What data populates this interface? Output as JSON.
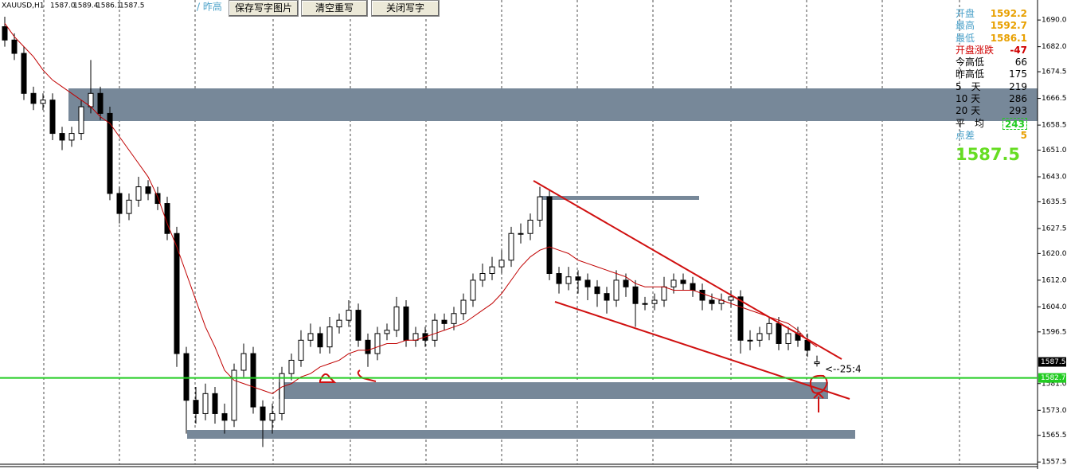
{
  "toolbar": {
    "prev_label": "/ 昨高",
    "buttons": [
      "保存写字图片",
      "清空重写",
      "关闭写字"
    ]
  },
  "chart_data": {
    "type": "candlestick",
    "symbol": "XAUUSD,H1",
    "header_ohlc": [
      "1587.0",
      "1589.4",
      "1586.1",
      "1587.5"
    ],
    "open": [
      1688,
      1684,
      1680,
      1668,
      1665,
      1666,
      1656,
      1654,
      1656,
      1664,
      1668,
      1662,
      1638,
      1632,
      1636,
      1640,
      1638,
      1635,
      1626,
      1590,
      1576,
      1572,
      1578,
      1572,
      1570,
      1585,
      1590,
      1574,
      1570,
      1572,
      1584,
      1588,
      1594,
      1596,
      1592,
      1598,
      1600,
      1603,
      1594,
      1590,
      1596,
      1597,
      1604,
      1594,
      1596,
      1594,
      1600,
      1599,
      1602,
      1606,
      1612,
      1614,
      1616,
      1618,
      1626,
      1626,
      1630,
      1637,
      1614,
      1611,
      1613,
      1612,
      1610,
      1608,
      1606,
      1612,
      1610,
      1605,
      1605,
      1606,
      1610,
      1612,
      1611,
      1609,
      1606,
      1605,
      1606,
      1607,
      1594,
      1594,
      1596,
      1599,
      1593,
      1596,
      1594,
      1587.0
    ],
    "high": [
      1691,
      1686,
      1682,
      1670,
      1668,
      1668,
      1658,
      1658,
      1666,
      1678,
      1670,
      1664,
      1640,
      1638,
      1643,
      1642,
      1640,
      1637,
      1628,
      1592,
      1580,
      1581,
      1580,
      1575,
      1587,
      1593,
      1592,
      1576,
      1575,
      1586,
      1590,
      1597,
      1599,
      1598,
      1601,
      1602,
      1606,
      1605,
      1596,
      1598,
      1599,
      1607,
      1606,
      1598,
      1598,
      1602,
      1602,
      1604,
      1608,
      1614,
      1617,
      1619,
      1621,
      1628,
      1629,
      1632,
      1640,
      1639,
      1616,
      1616,
      1615,
      1614,
      1612,
      1610,
      1615,
      1614,
      1612,
      1607,
      1608,
      1613,
      1614,
      1614,
      1613,
      1611,
      1608,
      1608,
      1609,
      1609,
      1597,
      1598,
      1601,
      1601,
      1598,
      1598,
      1596,
      1589.4
    ],
    "low": [
      1682,
      1678,
      1666,
      1663,
      1663,
      1654,
      1651,
      1652,
      1654,
      1662,
      1660,
      1636,
      1629,
      1630,
      1634,
      1636,
      1633,
      1624,
      1586,
      1566,
      1569,
      1570,
      1569,
      1566,
      1568,
      1583,
      1572,
      1562,
      1566,
      1570,
      1582,
      1586,
      1592,
      1590,
      1590,
      1596,
      1598,
      1592,
      1586,
      1588,
      1594,
      1595,
      1592,
      1592,
      1592,
      1592,
      1597,
      1597,
      1600,
      1604,
      1610,
      1612,
      1614,
      1616,
      1623,
      1624,
      1628,
      1612,
      1608,
      1609,
      1608,
      1606,
      1604,
      1602,
      1604,
      1607,
      1598,
      1603,
      1603,
      1604,
      1608,
      1609,
      1607,
      1603,
      1603,
      1603,
      1604,
      1590,
      1591,
      1592,
      1594,
      1591,
      1591,
      1592,
      1589,
      1586.1
    ],
    "close": [
      1684,
      1680,
      1668,
      1665,
      1666,
      1656,
      1654,
      1656,
      1664,
      1668,
      1662,
      1638,
      1632,
      1636,
      1640,
      1638,
      1635,
      1626,
      1590,
      1576,
      1572,
      1578,
      1572,
      1570,
      1585,
      1590,
      1574,
      1570,
      1572,
      1584,
      1588,
      1594,
      1596,
      1592,
      1598,
      1600,
      1603,
      1594,
      1590,
      1596,
      1597,
      1604,
      1594,
      1596,
      1594,
      1600,
      1599,
      1602,
      1606,
      1612,
      1614,
      1616,
      1618,
      1626,
      1626,
      1630,
      1637,
      1614,
      1611,
      1613,
      1612,
      1610,
      1608,
      1606,
      1612,
      1610,
      1605,
      1605,
      1606,
      1610,
      1612,
      1611,
      1609,
      1606,
      1605,
      1606,
      1607,
      1594,
      1594,
      1596,
      1599,
      1593,
      1596,
      1594,
      1591,
      1587.5
    ],
    "ma": {
      "color": "#c00000",
      "values": [
        1689,
        1685,
        1682,
        1679,
        1675,
        1672,
        1670,
        1668,
        1666,
        1664,
        1661,
        1659,
        1655,
        1651,
        1647,
        1643,
        1637,
        1629,
        1622,
        1614,
        1606,
        1598,
        1592,
        1585,
        1582,
        1581,
        1580,
        1579,
        1578,
        1580,
        1581,
        1583,
        1584,
        1586,
        1587,
        1588,
        1590,
        1591,
        1591,
        1592,
        1593,
        1593,
        1594,
        1594,
        1595,
        1596,
        1597,
        1598,
        1599,
        1601,
        1603,
        1605,
        1608,
        1612,
        1616,
        1619,
        1621,
        1622,
        1621,
        1620,
        1618,
        1617,
        1616,
        1615,
        1614,
        1613,
        1611,
        1610,
        1610,
        1610,
        1609,
        1609,
        1609,
        1608,
        1607,
        1606,
        1605,
        1604,
        1603,
        1602,
        1601,
        1600,
        1599,
        1597,
        1594,
        1592
      ]
    },
    "ylim": [
      1555.4,
      1696.0
    ],
    "yticks": [
      {
        "value": 1690,
        "label": "1690.0"
      },
      {
        "value": 1682,
        "label": "1682.0"
      },
      1674.5,
      1666.5,
      1658.5,
      {
        "value": 1651,
        "label": "1651.0"
      },
      {
        "value": 1643,
        "label": "1643.0"
      },
      1635.5,
      1627.5,
      {
        "value": 1620,
        "label": "1620.0"
      },
      {
        "value": 1612,
        "label": "1612.0"
      },
      {
        "value": 1604,
        "label": "1604.0"
      },
      1596.5,
      {
        "value": 1581,
        "label": "1581.0"
      },
      {
        "value": 1573,
        "label": "1573.0"
      },
      1565.5,
      1557.5
    ],
    "hline": {
      "value": 1582.7,
      "color": "#22cc22"
    },
    "bid": 1587.5,
    "annotation": "<--25:4"
  },
  "info_panel": {
    "rows": [
      [
        "开盘",
        "1592.2"
      ],
      [
        "最高",
        "1592.7"
      ],
      [
        "最低",
        "1586.1"
      ],
      [
        "开盘涨跌",
        "-47"
      ],
      [
        "今高低",
        "66"
      ],
      [
        "昨高低",
        "175"
      ],
      [
        "5　天",
        "219"
      ],
      [
        "10 天",
        "286"
      ],
      [
        "20 天",
        "293"
      ],
      [
        "平　均",
        "243"
      ],
      [
        "点差",
        "5"
      ]
    ],
    "big": "1587.5"
  }
}
